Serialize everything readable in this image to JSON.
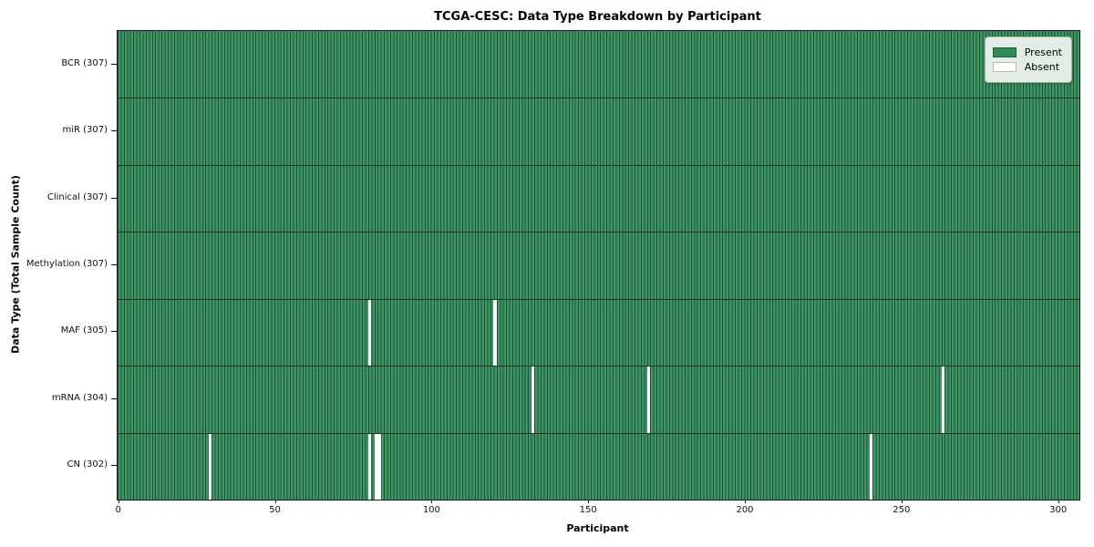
{
  "chart_data": {
    "type": "heatmap",
    "title": "TCGA-CESC: Data Type Breakdown by Participant",
    "xlabel": "Participant",
    "ylabel": "Data Type (Total Sample Count)",
    "n_participants": 307,
    "x_ticks": [
      0,
      50,
      100,
      150,
      200,
      250,
      300
    ],
    "rows": [
      {
        "label": "BCR (307)",
        "name": "BCR",
        "total": 307,
        "absent_participants": []
      },
      {
        "label": "miR (307)",
        "name": "miR",
        "total": 307,
        "absent_participants": []
      },
      {
        "label": "Clinical (307)",
        "name": "Clinical",
        "total": 307,
        "absent_participants": []
      },
      {
        "label": "Methylation (307)",
        "name": "Methylation",
        "total": 307,
        "absent_participants": []
      },
      {
        "label": "MAF (305)",
        "name": "MAF",
        "total": 305,
        "absent_participants": [
          80,
          120
        ]
      },
      {
        "label": "mRNA (304)",
        "name": "mRNA",
        "total": 304,
        "absent_participants": [
          132,
          169,
          263
        ]
      },
      {
        "label": "CN (302)",
        "name": "CN",
        "total": 302,
        "absent_participants": [
          29,
          80,
          82,
          83,
          240
        ]
      }
    ],
    "legend": [
      {
        "label": "Present",
        "color": "#2e8b57"
      },
      {
        "label": "Absent",
        "color": "#ffffff"
      }
    ],
    "colors": {
      "present_fill": "#399962",
      "bar_edge": "#2a4a38",
      "absent_fill": "#ffffff",
      "row_separator": "#1d2e24",
      "spine": "#1a1a1a"
    }
  }
}
